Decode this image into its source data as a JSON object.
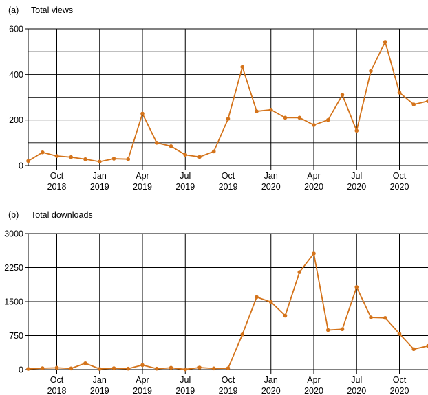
{
  "colors": {
    "series": "#d4731a",
    "grid": "#000000"
  },
  "chart_data": [
    {
      "type": "line",
      "panel": "(a)",
      "title": "Total views",
      "x_start": "2018-08",
      "x_end": "2020-12",
      "ylim": [
        0,
        600
      ],
      "yticks": [
        0,
        200,
        400,
        600
      ],
      "minor_yticks": [
        100,
        300,
        500
      ],
      "grid": true,
      "xticks": [
        {
          "date": "2018-10",
          "month": "Oct",
          "year": "2018"
        },
        {
          "date": "2019-01",
          "month": "Jan",
          "year": "2019"
        },
        {
          "date": "2019-04",
          "month": "Apr",
          "year": "2019"
        },
        {
          "date": "2019-07",
          "month": "Jul",
          "year": "2019"
        },
        {
          "date": "2019-10",
          "month": "Oct",
          "year": "2019"
        },
        {
          "date": "2020-01",
          "month": "Jan",
          "year": "2020"
        },
        {
          "date": "2020-04",
          "month": "Apr",
          "year": "2020"
        },
        {
          "date": "2020-07",
          "month": "Jul",
          "year": "2020"
        },
        {
          "date": "2020-10",
          "month": "Oct",
          "year": "2020"
        }
      ],
      "series": [
        {
          "x": [
            "2018-08",
            "2018-09",
            "2018-10",
            "2018-11",
            "2018-12",
            "2019-01",
            "2019-02",
            "2019-03",
            "2019-04",
            "2019-05",
            "2019-06",
            "2019-07",
            "2019-08",
            "2019-09",
            "2019-10",
            "2019-11",
            "2019-12",
            "2020-01",
            "2020-02",
            "2020-03",
            "2020-04",
            "2020-05",
            "2020-06",
            "2020-07",
            "2020-08",
            "2020-09",
            "2020-10",
            "2020-11",
            "2020-12"
          ],
          "values": [
            20,
            58,
            42,
            37,
            28,
            17,
            30,
            28,
            228,
            100,
            85,
            47,
            38,
            62,
            205,
            433,
            238,
            245,
            210,
            210,
            178,
            200,
            310,
            153,
            415,
            543,
            320,
            268,
            283
          ]
        }
      ]
    },
    {
      "type": "line",
      "panel": "(b)",
      "title": "Total downloads",
      "x_start": "2018-08",
      "x_end": "2020-12",
      "ylim": [
        0,
        3000
      ],
      "yticks": [
        0,
        750,
        1500,
        2250,
        3000
      ],
      "minor_yticks": [],
      "grid": true,
      "xticks": [
        {
          "date": "2018-10",
          "month": "Oct",
          "year": "2018"
        },
        {
          "date": "2019-01",
          "month": "Jan",
          "year": "2019"
        },
        {
          "date": "2019-04",
          "month": "Apr",
          "year": "2019"
        },
        {
          "date": "2019-07",
          "month": "Jul",
          "year": "2019"
        },
        {
          "date": "2019-10",
          "month": "Oct",
          "year": "2019"
        },
        {
          "date": "2020-01",
          "month": "Jan",
          "year": "2020"
        },
        {
          "date": "2020-04",
          "month": "Apr",
          "year": "2020"
        },
        {
          "date": "2020-07",
          "month": "Jul",
          "year": "2020"
        },
        {
          "date": "2020-10",
          "month": "Oct",
          "year": "2020"
        }
      ],
      "series": [
        {
          "x": [
            "2018-08",
            "2018-09",
            "2018-10",
            "2018-11",
            "2018-12",
            "2019-01",
            "2019-02",
            "2019-03",
            "2019-04",
            "2019-05",
            "2019-06",
            "2019-07",
            "2019-08",
            "2019-09",
            "2019-10",
            "2019-11",
            "2019-12",
            "2020-01",
            "2020-02",
            "2020-03",
            "2020-04",
            "2020-05",
            "2020-06",
            "2020-07",
            "2020-08",
            "2020-09",
            "2020-10",
            "2020-11",
            "2020-12"
          ],
          "values": [
            15,
            30,
            40,
            25,
            140,
            15,
            30,
            20,
            100,
            20,
            40,
            5,
            45,
            25,
            30,
            775,
            1600,
            1490,
            1190,
            2150,
            2560,
            870,
            890,
            1820,
            1150,
            1140,
            790,
            450,
            520
          ]
        }
      ]
    }
  ]
}
